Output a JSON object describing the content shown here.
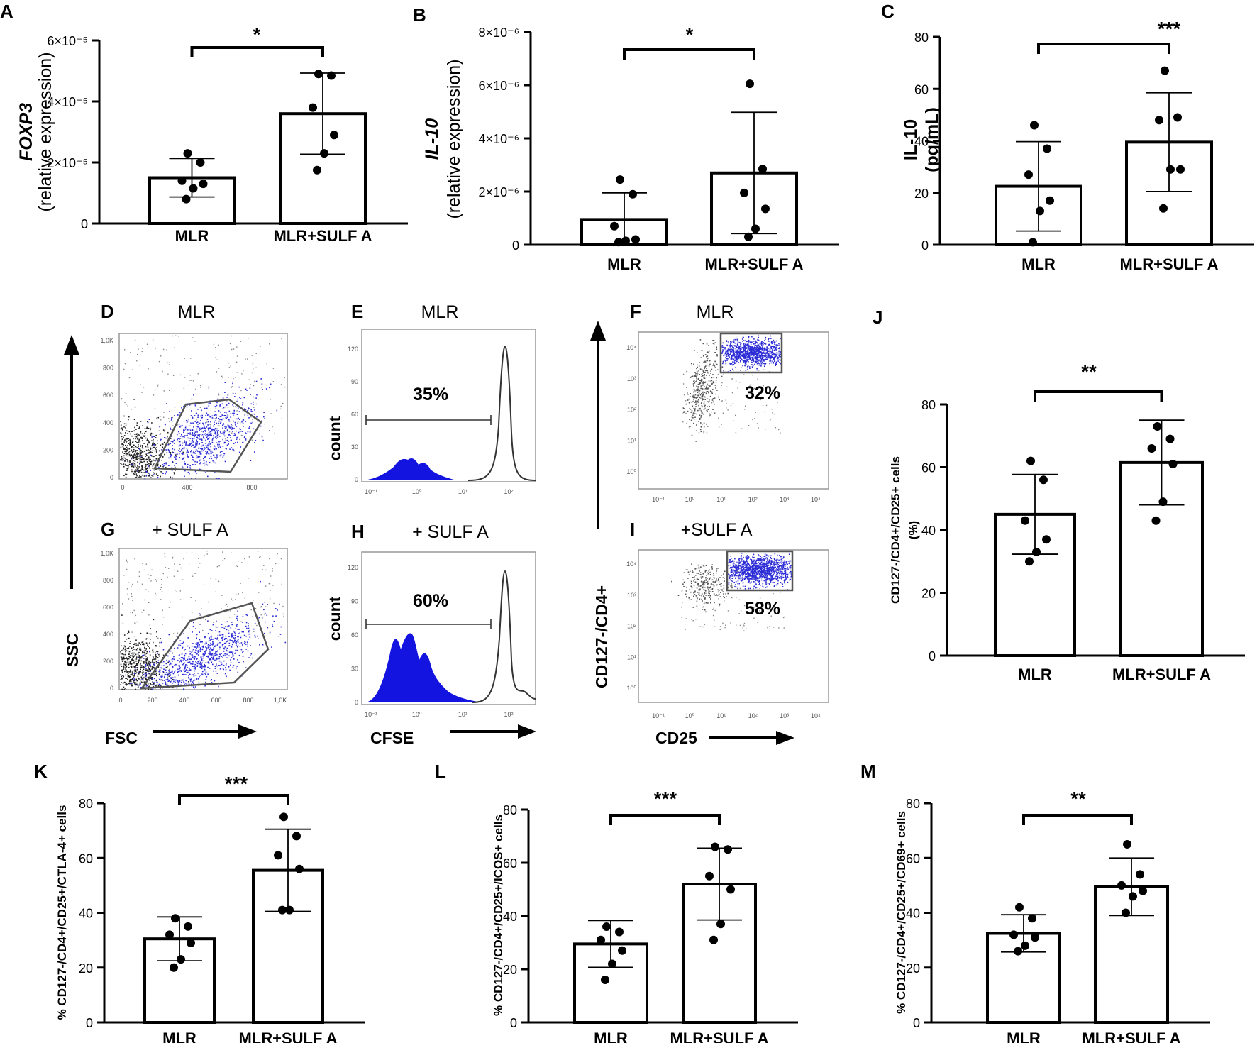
{
  "chart_data": [
    {
      "id": "A",
      "type": "bar",
      "panel_label": "A",
      "categories": [
        "MLR",
        "MLR+SULF A"
      ],
      "values": [
        1.5e-05,
        3.6e-05
      ],
      "sd": [
        6.3e-06,
        1.33e-05
      ],
      "points": [
        [
          2.3e-05,
          2e-05,
          1.4e-05,
          1.3e-05,
          1.15e-05,
          8e-06
        ],
        [
          4.9e-05,
          4.85e-05,
          3.8e-05,
          2.9e-05,
          2.3e-05,
          1.75e-05
        ]
      ],
      "ylim": [
        0,
        6e-05
      ],
      "yticks": [
        "0",
        "2×10⁻⁵",
        "4×10⁻⁵",
        "6×10⁻⁵"
      ],
      "ylabel_italic": "FOXP3",
      "ylabel": "(relative expression)",
      "significance": "*"
    },
    {
      "id": "B",
      "type": "bar",
      "panel_label": "B",
      "categories": [
        "MLR",
        "MLR+SULF A"
      ],
      "values": [
        9.5e-07,
        2.7e-06
      ],
      "sd": [
        1e-06,
        2.28e-06
      ],
      "points": [
        [
          2.45e-06,
          1.9e-06,
          7e-07,
          2e-07,
          1.5e-07,
          1e-07
        ],
        [
          6.05e-06,
          2.85e-06,
          1.95e-06,
          1.35e-06,
          6e-07,
          3e-07
        ]
      ],
      "ylim": [
        0,
        8e-06
      ],
      "yticks": [
        "0",
        "2×10⁻⁶",
        "4×10⁻⁶",
        "6×10⁻⁶",
        "8×10⁻⁶"
      ],
      "ylabel_italic": "IL-10",
      "ylabel": "(relative expression)",
      "significance": "*"
    },
    {
      "id": "C",
      "type": "bar",
      "panel_label": "C",
      "categories": [
        "MLR",
        "MLR+SULF A"
      ],
      "values": [
        22.5,
        39.5
      ],
      "sd": [
        17.2,
        19.0
      ],
      "points": [
        [
          46,
          37,
          27,
          17,
          13,
          1
        ],
        [
          67,
          49,
          48,
          29,
          29,
          14
        ]
      ],
      "ylim": [
        0,
        80
      ],
      "yticks": [
        "0",
        "20",
        "40",
        "60",
        "80"
      ],
      "ylabel_bold": "IL-10",
      "ylabel": "(pg/mL)",
      "significance": "***"
    },
    {
      "id": "J",
      "type": "bar",
      "panel_label": "J",
      "categories": [
        "MLR",
        "MLR+SULF A"
      ],
      "values": [
        45,
        61.5
      ],
      "sd": [
        12.7,
        13.5
      ],
      "points": [
        [
          62,
          56,
          43,
          37,
          33,
          30
        ],
        [
          73,
          69,
          66,
          61,
          49,
          43
        ]
      ],
      "ylim": [
        0,
        80
      ],
      "yticks": [
        "0",
        "20",
        "40",
        "60",
        "80"
      ],
      "ylabel": "CD127-/CD4+/CD25+ cells",
      "ylabel2": "(%)",
      "significance": "**"
    },
    {
      "id": "K",
      "type": "bar",
      "panel_label": "K",
      "categories": [
        "MLR",
        "MLR+SULF A"
      ],
      "values": [
        30.5,
        55.5
      ],
      "sd": [
        8.0,
        15.0
      ],
      "points": [
        [
          38,
          35,
          32,
          29,
          23,
          20
        ],
        [
          75,
          68,
          61,
          56,
          41,
          41
        ]
      ],
      "ylim": [
        0,
        80
      ],
      "yticks": [
        "0",
        "20",
        "40",
        "60",
        "80"
      ],
      "ylabel": "% CD127-/CD4+/CD25+/CTLA-4+ cells",
      "significance": "***"
    },
    {
      "id": "L",
      "type": "bar",
      "panel_label": "L",
      "categories": [
        "MLR",
        "MLR+SULF A"
      ],
      "values": [
        29.5,
        52
      ],
      "sd": [
        8.8,
        13.5
      ],
      "points": [
        [
          36,
          34,
          31,
          27,
          22,
          16
        ],
        [
          66,
          65,
          55,
          50,
          37,
          31
        ]
      ],
      "ylim": [
        0,
        80
      ],
      "yticks": [
        "0",
        "20",
        "40",
        "60",
        "80"
      ],
      "ylabel": "% CD127-/CD4+/CD25+/ICOS+ cells",
      "significance": "***"
    },
    {
      "id": "M",
      "type": "bar",
      "panel_label": "M",
      "categories": [
        "MLR",
        "MLR+SULF A"
      ],
      "values": [
        32.5,
        49.5
      ],
      "sd": [
        6.8,
        10.5
      ],
      "points": [
        [
          42,
          38,
          32,
          31,
          28,
          26
        ],
        [
          65,
          54,
          50,
          48,
          46,
          40
        ]
      ],
      "ylim": [
        0,
        80
      ],
      "yticks": [
        "0",
        "20",
        "40",
        "60",
        "80"
      ],
      "ylabel": "% CD127-/CD4+/CD25+/CD69+ cells",
      "significance": "**"
    }
  ],
  "flow": {
    "D": {
      "label": "D",
      "title": "MLR",
      "xticks": [
        "0",
        "400",
        "800"
      ],
      "yticks": [
        "0",
        "200",
        "400",
        "600",
        "800",
        "1,0K"
      ]
    },
    "G": {
      "label": "G",
      "title": "+ SULF A",
      "xticks": [
        "0",
        "200",
        "400",
        "600",
        "800",
        "1,0K"
      ],
      "yticks": [
        "0",
        "200",
        "400",
        "600",
        "800",
        "1,0K"
      ]
    },
    "E": {
      "label": "E",
      "title": "MLR",
      "percent": "35%",
      "ylabel": "count",
      "yticks": [
        "0",
        "30",
        "60",
        "90",
        "120"
      ]
    },
    "H": {
      "label": "H",
      "title": "+ SULF A",
      "percent": "60%",
      "ylabel": "count",
      "yticks": [
        "0",
        "30",
        "60",
        "90",
        "120"
      ]
    },
    "F": {
      "label": "F",
      "title": "MLR",
      "percent": "32%"
    },
    "I": {
      "label": "I",
      "title": "+SULF A",
      "percent": "58%"
    },
    "hist_xticks": [
      "10⁻¹",
      "10⁰",
      "10¹",
      "10²"
    ],
    "log_ticks": [
      "10⁻¹",
      "10⁰",
      "10¹",
      "10²",
      "10³",
      "10⁴"
    ],
    "axis": {
      "ssc": "SSC",
      "fsc": "FSC",
      "cfse": "CFSE",
      "cd25": "CD25",
      "cd127": "CD127-/CD4+"
    }
  },
  "colors": {
    "gated": "#2c2cd6",
    "ungated": "#222222",
    "fill": "#1414e0",
    "gate": "#555555"
  }
}
